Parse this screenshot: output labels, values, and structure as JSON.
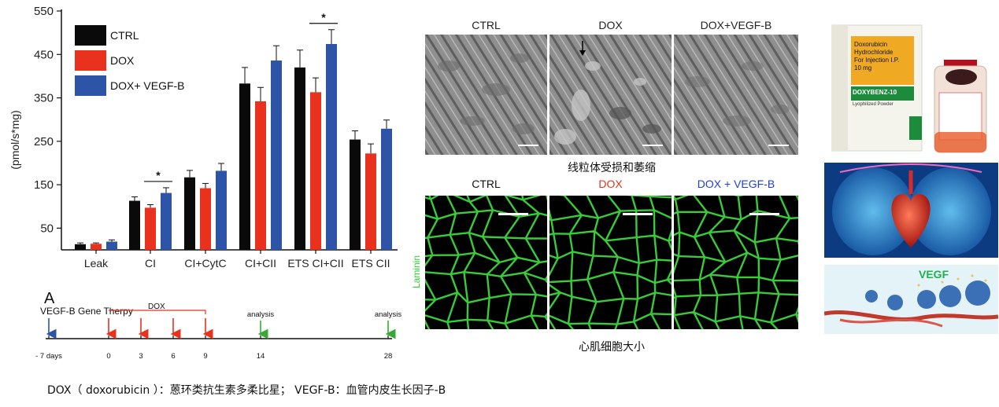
{
  "chart_data": {
    "type": "bar",
    "ylabel": "(pmol/s*mg)",
    "y_ticks": [
      50,
      150,
      250,
      350,
      450,
      550
    ],
    "ylim": [
      0,
      550
    ],
    "categories": [
      "Leak",
      "CI",
      "CI+CytC",
      "CI+CII",
      "ETS CI+CII",
      "ETS CII"
    ],
    "series": [
      {
        "name": "CTRL",
        "color": "#0a0a0a",
        "values": [
          13,
          113,
          167,
          383,
          420,
          254
        ],
        "errors": [
          3,
          9,
          16,
          37,
          40,
          20
        ]
      },
      {
        "name": "DOX",
        "color": "#e8321e",
        "values": [
          14,
          97,
          142,
          342,
          363,
          222
        ],
        "errors": [
          2,
          7,
          11,
          32,
          33,
          22
        ]
      },
      {
        "name": "DOX+ VEGF-B",
        "color": "#2e54a8",
        "values": [
          19,
          131,
          182,
          436,
          474,
          279
        ],
        "errors": [
          4,
          12,
          17,
          34,
          33,
          20
        ]
      }
    ],
    "significance": [
      {
        "category": "CI",
        "label": "*"
      },
      {
        "category": "ETS CI+CII",
        "label": "*"
      }
    ],
    "legend_position": "top-left"
  },
  "timeline": {
    "panel_label": "A",
    "gene_therapy_label": "VEGF-B Gene Therpy",
    "dox_label": "DOX",
    "analysis_label": "analysis",
    "ticks": [
      "- 7 days",
      "0",
      "3",
      "6",
      "9",
      "14",
      "28"
    ]
  },
  "em_panel": {
    "labels": [
      "CTRL",
      "DOX",
      "DOX+VEGF-B"
    ],
    "caption": "线粒体受损和萎缩"
  },
  "laminin_panel": {
    "labels": [
      "CTRL",
      "DOX",
      "DOX + VEGF-B"
    ],
    "label_colors": [
      "#111111",
      "#e8321e",
      "#1f3fd8"
    ],
    "side_label": "Laminin",
    "caption": "心肌细胞大小"
  },
  "drug_box": {
    "lines": [
      "Doxorubicin",
      "Hydrochloride",
      "For Injection I.P.",
      "10 mg"
    ],
    "brand": "DOXYBENZ-10",
    "subtitle": "Lyophilized Powder"
  },
  "vegf_label": "VEGF",
  "footer": "DOX（ doxorubicin ）：蒽环类抗生素多柔比星； VEGF-B：血管内皮生长因子-B"
}
